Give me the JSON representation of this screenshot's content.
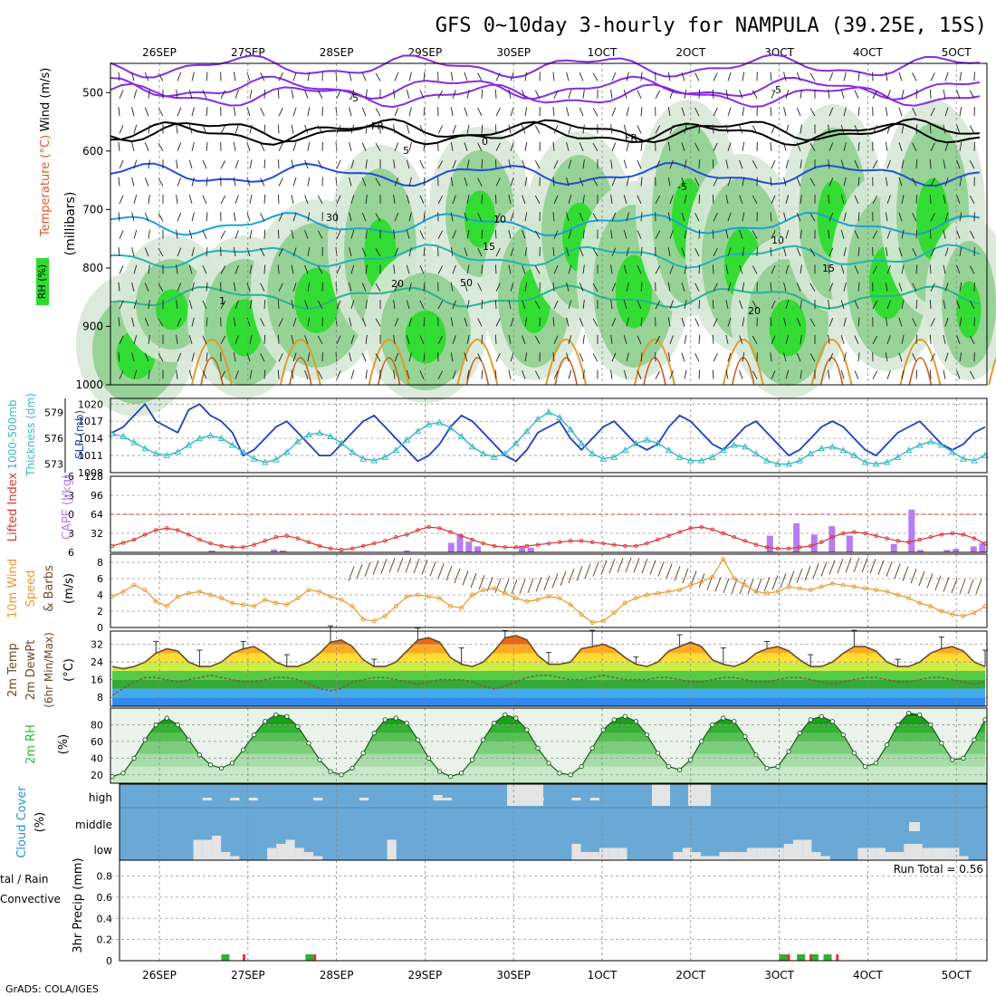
{
  "chart_data": {
    "type": "meteogram",
    "title": "GFS 0~10day 3-hourly for NAMPULA (39.25E, 15S)",
    "credit": "GrADS: COLA/IGES",
    "dates": [
      "26SEP",
      "27SEP",
      "28SEP",
      "29SEP",
      "30SEP",
      "1OCT",
      "2OCT",
      "3OCT",
      "4OCT",
      "5OCT"
    ],
    "date_labels": [
      "26SEP",
      "27SEP",
      "28SEP",
      "29SEP",
      "30SEP",
      "1OCT",
      "2OCT",
      "3OCT",
      "4OCT",
      "5OCT"
    ],
    "panels": [
      {
        "id": "upper-air",
        "ylabel": [
          "Wind (m/s)",
          "Temperature (°C)",
          "RH (%)",
          "(millibars)"
        ],
        "ylabel_text": {
          "wind": "Wind (m/s)",
          "temperature": "Temperature (°C)",
          "rh": "RH (%)",
          "units": "(millibars)"
        },
        "yticks": [
          500,
          600,
          700,
          800,
          900,
          1000
        ],
        "ylim": [
          450,
          1000
        ],
        "contour_labels": [
          "-5",
          "-5",
          "FR",
          "FR",
          "5",
          "-5",
          "0",
          "10",
          "10",
          "15",
          "15",
          "20",
          "20",
          "1",
          "50",
          "30"
        ],
        "isotherms_c": [
          -5,
          0,
          5,
          10,
          15,
          20
        ],
        "freezing_level_mb": 560
      },
      {
        "id": "pressure",
        "ylabel": [
          "1000-500mb Thickness (dm)",
          "SLP (mb)"
        ],
        "ylabel_text": {
          "thickness": "1000-500mb",
          "thickness_units": "Thickness (dm)",
          "slp": "SLP (mb)"
        },
        "thickness_ticks": [
          573,
          576,
          579
        ],
        "slp_ticks": [
          1008,
          1011,
          1014,
          1017,
          1020
        ],
        "slp_ylim": [
          1008,
          1021
        ],
        "thickness_ylim": [
          572,
          580.6
        ]
      },
      {
        "id": "instability",
        "ylabel": [
          "Lifted Index",
          "CAPE (J/kg)"
        ],
        "ylabel_text": {
          "li": "Lifted Index",
          "cape": "CAPE (J/kg)"
        },
        "li_ticks": [
          -6,
          -3,
          0,
          3,
          6
        ],
        "cape_ticks": [
          32,
          64,
          96,
          128
        ],
        "cape_ylim": [
          0,
          128
        ]
      },
      {
        "id": "wind10m",
        "ylabel": [
          "10m Wind",
          "Speed",
          "& Barbs",
          "(m/s)"
        ],
        "ylabel_text": {
          "a": "10m Wind",
          "b": "Speed",
          "c": "& Barbs",
          "units": "(m/s)"
        },
        "yticks": [
          0,
          2,
          4,
          6,
          8
        ],
        "ylim": [
          0,
          9
        ]
      },
      {
        "id": "temp2m",
        "ylabel": [
          "2m Temp",
          "2m DewPt",
          "(6hr Min/Max)",
          "(°C)"
        ],
        "ylabel_text": {
          "a": "2m Temp",
          "b": "2m DewPt",
          "c": "(6hr Min/Max)",
          "units": "(°C)"
        },
        "yticks": [
          8,
          16,
          24,
          32
        ],
        "ylim": [
          4,
          38
        ]
      },
      {
        "id": "rh2m",
        "ylabel": [
          "2m RH",
          "(%)"
        ],
        "ylabel_text": {
          "a": "2m RH",
          "units": "(%)"
        },
        "yticks": [
          20,
          40,
          60,
          80
        ],
        "ylim": [
          10,
          100
        ]
      },
      {
        "id": "cloud",
        "ylabel": [
          "Cloud Cover",
          "(%)"
        ],
        "ylabel_text": {
          "a": "Cloud Cover",
          "units": "(%)"
        },
        "layers": [
          "high",
          "middle",
          "low"
        ]
      },
      {
        "id": "precip",
        "ylabel": [
          "Total / Rain",
          "Convective",
          "3hr Precip (mm)"
        ],
        "ylabel_text": {
          "a": "tal / Rain",
          "b": "Convective",
          "units": "3hr Precip (mm)"
        },
        "yticks": [
          0,
          0.2,
          0.4,
          0.6,
          0.8
        ],
        "ylim": [
          0,
          0.95
        ],
        "run_total_label": "Run Total = 0.56"
      }
    ],
    "series": {
      "slp_mb": [
        1015,
        1016,
        1018,
        1020,
        1017,
        1016,
        1015,
        1019,
        1020,
        1018,
        1017,
        1015,
        1011,
        1012,
        1014,
        1016,
        1017,
        1015,
        1013,
        1011,
        1011,
        1013,
        1015,
        1017,
        1018,
        1016,
        1014,
        1012,
        1010,
        1011,
        1013,
        1016,
        1018,
        1017,
        1015,
        1013,
        1011,
        1010,
        1012,
        1015,
        1016,
        1017,
        1014,
        1012,
        1014,
        1016,
        1017,
        1015,
        1013,
        1012,
        1013,
        1016,
        1018,
        1017,
        1015,
        1013,
        1012,
        1014,
        1016,
        1017,
        1015,
        1013,
        1011,
        1012,
        1014,
        1016,
        1017,
        1016,
        1014,
        1012,
        1011,
        1013,
        1015,
        1016,
        1017,
        1015,
        1013,
        1012,
        1013,
        1015,
        1016
      ],
      "thickness_dm": [
        576.5,
        576.2,
        575.5,
        574.8,
        574.2,
        574.0,
        574.4,
        575.2,
        576.0,
        576.3,
        576.0,
        575.2,
        574.4,
        573.6,
        573.2,
        573.5,
        574.4,
        575.6,
        576.4,
        576.6,
        576.2,
        575.4,
        574.4,
        573.6,
        573.4,
        573.8,
        574.6,
        575.8,
        576.8,
        577.6,
        577.8,
        577.2,
        576.2,
        575.0,
        574.2,
        573.8,
        574.2,
        575.4,
        576.8,
        578.2,
        579.0,
        578.4,
        577.0,
        575.4,
        574.2,
        573.6,
        573.8,
        574.6,
        575.4,
        575.8,
        575.4,
        574.6,
        573.8,
        573.4,
        573.4,
        573.8,
        574.6,
        575.2,
        575.0,
        574.2,
        573.4,
        573.0,
        573.0,
        573.4,
        574.2,
        574.8,
        575.0,
        574.6,
        574.0,
        573.2,
        573.0,
        573.2,
        573.8,
        574.6,
        575.2,
        575.6,
        575.2,
        574.4,
        573.6,
        573.4,
        574.0
      ],
      "cape_jkg": [
        0,
        0,
        0,
        3,
        5,
        0,
        0,
        0,
        0,
        0,
        0,
        0,
        0,
        0,
        0,
        0,
        0,
        0,
        0,
        0,
        0,
        0,
        0,
        0,
        0,
        0,
        0,
        0,
        0,
        0,
        0,
        0,
        12,
        20,
        10,
        0,
        0,
        0,
        0,
        0,
        0,
        0,
        0,
        0,
        0,
        0,
        0,
        0,
        0,
        0,
        0,
        0,
        0,
        0,
        0,
        0,
        0,
        0,
        0,
        0,
        0,
        0,
        0,
        0,
        0,
        0,
        0,
        0,
        0,
        0,
        0,
        0,
        0,
        0,
        0,
        0,
        0,
        0,
        0,
        0,
        0,
        0,
        0,
        0,
        0,
        0,
        0,
        0,
        0,
        0,
        0,
        0
      ],
      "cape_bars": [
        [
          0.6,
          3
        ],
        [
          1.3,
          5
        ],
        [
          1.4,
          3
        ],
        [
          2.8,
          3
        ],
        [
          3.3,
          16
        ],
        [
          3.4,
          30
        ],
        [
          3.5,
          18
        ],
        [
          3.6,
          10
        ],
        [
          4.1,
          10
        ],
        [
          4.2,
          8
        ],
        [
          6.9,
          28
        ],
        [
          7.2,
          49
        ],
        [
          7.4,
          30
        ],
        [
          7.6,
          44
        ],
        [
          7.8,
          28
        ],
        [
          8.3,
          14
        ],
        [
          8.5,
          72
        ],
        [
          8.6,
          4
        ],
        [
          8.9,
          4
        ],
        [
          9.0,
          6
        ],
        [
          9.2,
          10
        ],
        [
          9.3,
          16
        ],
        [
          9.6,
          4
        ],
        [
          9.7,
          8
        ],
        [
          10.0,
          32
        ],
        [
          10.3,
          10
        ],
        [
          10.6,
          12
        ],
        [
          10.8,
          14
        ],
        [
          11.1,
          4
        ],
        [
          11.5,
          10
        ],
        [
          11.7,
          20
        ],
        [
          11.9,
          32
        ],
        [
          12.0,
          48
        ],
        [
          12.1,
          48
        ],
        [
          12.3,
          4
        ],
        [
          12.9,
          36
        ],
        [
          13.0,
          48
        ],
        [
          13.2,
          32
        ],
        [
          13.4,
          28
        ],
        [
          13.5,
          12
        ],
        [
          13.8,
          10
        ],
        [
          14.0,
          24
        ],
        [
          14.3,
          18
        ],
        [
          14.4,
          22
        ],
        [
          14.6,
          22
        ]
      ],
      "lifted_index": [
        5,
        4.5,
        4,
        3.2,
        2.5,
        2.2,
        2.5,
        3.2,
        4,
        4.6,
        5,
        5.2,
        5.2,
        4.8,
        4.2,
        3.6,
        3.4,
        3.8,
        4.4,
        5,
        5.4,
        5.6,
        5.4,
        5,
        4.6,
        4.2,
        3.6,
        3.2,
        2.5,
        2.0,
        2.2,
        2.8,
        3.4,
        4.0,
        4.6,
        5.0,
        5.2,
        5.2,
        5.0,
        4.8,
        4.6,
        4.4,
        4.2,
        4.2,
        4.4,
        4.6,
        4.8,
        5.0,
        5.0,
        4.6,
        4.0,
        3.4,
        2.8,
        2.2,
        2.0,
        2.4,
        3.0,
        3.6,
        4.2,
        4.8,
        5.2,
        5.4,
        5.4,
        5.2,
        5.0,
        4.4,
        3.6,
        3.0,
        2.8,
        3.0,
        3.4,
        3.8,
        4.2,
        4.4,
        4.0,
        3.6,
        3.2,
        3.0,
        3.2,
        3.8,
        4.6
      ],
      "wind10m_ms": [
        3.8,
        4.4,
        5.2,
        4.6,
        3.2,
        2.6,
        3.8,
        4.2,
        4.4,
        4.0,
        3.6,
        3.0,
        2.8,
        2.6,
        3.4,
        3.0,
        2.8,
        3.6,
        4.6,
        4.4,
        3.8,
        3.4,
        2.6,
        1.0,
        0.8,
        1.4,
        2.6,
        3.8,
        4.0,
        3.8,
        3.6,
        2.6,
        2.4,
        4.0,
        4.6,
        4.8,
        4.2,
        3.6,
        3.2,
        3.4,
        3.8,
        3.6,
        2.8,
        1.6,
        0.6,
        0.8,
        1.8,
        3.0,
        3.6,
        4.0,
        4.2,
        4.4,
        4.6,
        5.2,
        5.6,
        6.2,
        8.4,
        6.0,
        5.2,
        4.4,
        4.2,
        4.4,
        5.0,
        4.8,
        4.6,
        5.0,
        5.4,
        5.2,
        5.0,
        4.8,
        4.6,
        4.4,
        4.0,
        3.6,
        3.0,
        2.6,
        2.0,
        1.6,
        1.4,
        1.8,
        2.6,
        3.4,
        4.4,
        4.6,
        4.2,
        3.0,
        0.8,
        0.4,
        0.6,
        1.2,
        2.0
      ],
      "temp2m_c": [
        22,
        21,
        22,
        24,
        28,
        30,
        29,
        24,
        22,
        22,
        24,
        28,
        30,
        31,
        28,
        24,
        22,
        22,
        24,
        28,
        33,
        34,
        31,
        25,
        22,
        22,
        24,
        29,
        34,
        35,
        33,
        26,
        23,
        22,
        24,
        29,
        35,
        36,
        34,
        27,
        23,
        23,
        24,
        30,
        31,
        32,
        30,
        26,
        23,
        22,
        24,
        29,
        31,
        33,
        31,
        25,
        23,
        22,
        24,
        28,
        30,
        31,
        29,
        25,
        22,
        22,
        24,
        28,
        31,
        31,
        29,
        24,
        22,
        22,
        24,
        28,
        30,
        31,
        29,
        24,
        22,
        21,
        26
      ],
      "dewpt2m_c": [
        9,
        12,
        15,
        17,
        17,
        16,
        15,
        16,
        17,
        18,
        17,
        16,
        15,
        15,
        16,
        17,
        17,
        16,
        14,
        12,
        11,
        12,
        15,
        16,
        17,
        17,
        16,
        15,
        14,
        15,
        16,
        16,
        16,
        15,
        13,
        12,
        13,
        15,
        17,
        18,
        18,
        17,
        16,
        16,
        17,
        18,
        17,
        16,
        16,
        16,
        17,
        17,
        16,
        15,
        15,
        16,
        17,
        17,
        16,
        15,
        15,
        16,
        17,
        17,
        16,
        15,
        14,
        15,
        16,
        17,
        17,
        16,
        15,
        15,
        16,
        17,
        17,
        16,
        15,
        14,
        15
      ],
      "rh2m_pct": [
        18,
        22,
        40,
        62,
        80,
        88,
        80,
        62,
        44,
        32,
        28,
        34,
        50,
        68,
        84,
        92,
        90,
        78,
        58,
        38,
        24,
        20,
        28,
        46,
        70,
        86,
        88,
        82,
        62,
        40,
        24,
        18,
        22,
        38,
        62,
        82,
        92,
        88,
        74,
        52,
        34,
        22,
        20,
        30,
        52,
        74,
        86,
        90,
        84,
        68,
        46,
        30,
        26,
        38,
        60,
        80,
        88,
        84,
        66,
        44,
        28,
        30,
        48,
        70,
        86,
        90,
        84,
        68,
        46,
        30,
        34,
        56,
        80,
        94,
        92,
        80,
        58,
        38,
        40,
        62,
        86,
        96,
        92,
        72,
        46
      ],
      "cloud_high": [
        0,
        0,
        0,
        0,
        0,
        0,
        0,
        0,
        0,
        1,
        0,
        0,
        1,
        0,
        1,
        0,
        0,
        0,
        0,
        0,
        0,
        1,
        0,
        0,
        0,
        0,
        1,
        0,
        0,
        0,
        0,
        0,
        0,
        0,
        2,
        1,
        0,
        0,
        0,
        0,
        0,
        0,
        0,
        0,
        0,
        1,
        0,
        0,
        0,
        1,
        0,
        1,
        0,
        0,
        0,
        0,
        0,
        0,
        0,
        0,
        0,
        0,
        1,
        0,
        0,
        0,
        0,
        0,
        0,
        0,
        0,
        0,
        0,
        0,
        0,
        0,
        0,
        0,
        0,
        0,
        0,
        0,
        0,
        0,
        0,
        0,
        0,
        0,
        0,
        0
      ],
      "cloud_low": [
        0,
        0,
        0,
        0,
        0,
        0,
        0,
        0,
        5,
        5,
        6,
        2,
        1,
        0,
        0,
        0,
        3,
        4,
        5,
        3,
        2,
        1,
        0,
        0,
        0,
        0,
        0,
        0,
        0,
        5,
        0,
        0,
        0,
        0,
        0,
        0,
        0,
        0,
        0,
        0,
        0,
        0,
        0,
        0,
        0,
        0,
        0,
        0,
        0,
        4,
        2,
        2,
        3,
        3,
        3,
        0,
        0,
        0,
        0,
        0,
        2,
        3,
        2,
        1,
        1,
        2,
        2,
        2,
        3,
        3,
        3,
        3,
        4,
        5,
        5,
        2,
        1,
        0,
        0,
        0,
        3,
        3,
        3,
        2,
        2,
        4,
        4,
        3,
        3,
        3,
        3,
        1,
        0,
        0
      ],
      "precip_total_mm": [
        [
          0.7,
          0.015
        ],
        [
          1.65,
          0.015
        ],
        [
          7.0,
          0.015
        ],
        [
          7.2,
          0.015
        ],
        [
          7.35,
          0.015
        ],
        [
          7.5,
          0.015
        ],
        [
          9.9,
          0.015
        ],
        [
          10.4,
          0.015
        ],
        [
          12.9,
          0.015
        ],
        [
          13.9,
          0.015
        ],
        [
          14.0,
          0.015
        ]
      ],
      "precip_conv_mm": [
        [
          0.9,
          0.015
        ],
        [
          1.7,
          0.015
        ],
        [
          7.05,
          0.015
        ],
        [
          7.3,
          0.015
        ],
        [
          7.6,
          0.015
        ],
        [
          10.1,
          0.015
        ],
        [
          11.0,
          0.015
        ],
        [
          14.05,
          0.015
        ]
      ],
      "run_total_mm": 0.56
    },
    "colors": {
      "slp": "#1f3fbf",
      "thickness": "#39b8c4",
      "cape": "#b77cf2",
      "lifted_index": "#dd3333",
      "wind_speed": "#e69b2a",
      "barbs": "#6b4a2a",
      "rh_fill": "#2db82d",
      "cloud_bg": "#6aa9d6",
      "cloud_fill": "#e4e4e4",
      "precip_total": "#2fb02f",
      "precip_conv": "#e33333",
      "temperature_purple": "#8a2be2",
      "freezing_level": "#000000",
      "isotherm_blue": "#1f4fd6",
      "isotherm_cyan": "#1f9fd6",
      "isotherm_teal": "#20b4b4"
    }
  }
}
